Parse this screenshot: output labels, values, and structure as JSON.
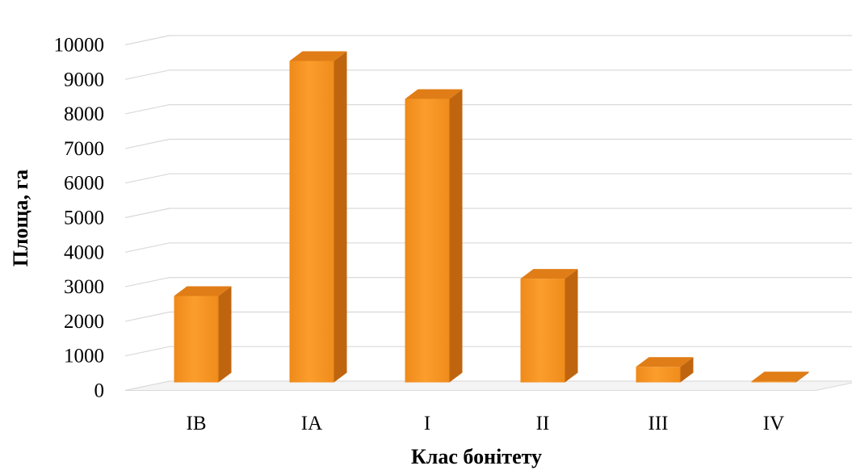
{
  "chart_data": {
    "type": "bar",
    "style": "3d-column",
    "categories": [
      "IB",
      "IA",
      "I",
      "II",
      "III",
      "IV"
    ],
    "values": [
      2500,
      9300,
      8200,
      3000,
      450,
      30
    ],
    "xlabel": "Клас бонітету",
    "ylabel": "Площа, га",
    "ylim": [
      0,
      10000
    ],
    "yticks": [
      "0",
      "1000",
      "2000",
      "3000",
      "4000",
      "5000",
      "6000",
      "7000",
      "8000",
      "9000",
      "10000"
    ],
    "grid": true,
    "legend": "none",
    "colors": {
      "bar_front": "#f7941d",
      "bar_side": "#c0650f",
      "bar_top": "#e07d16",
      "floor": "#d9d9d9"
    }
  }
}
